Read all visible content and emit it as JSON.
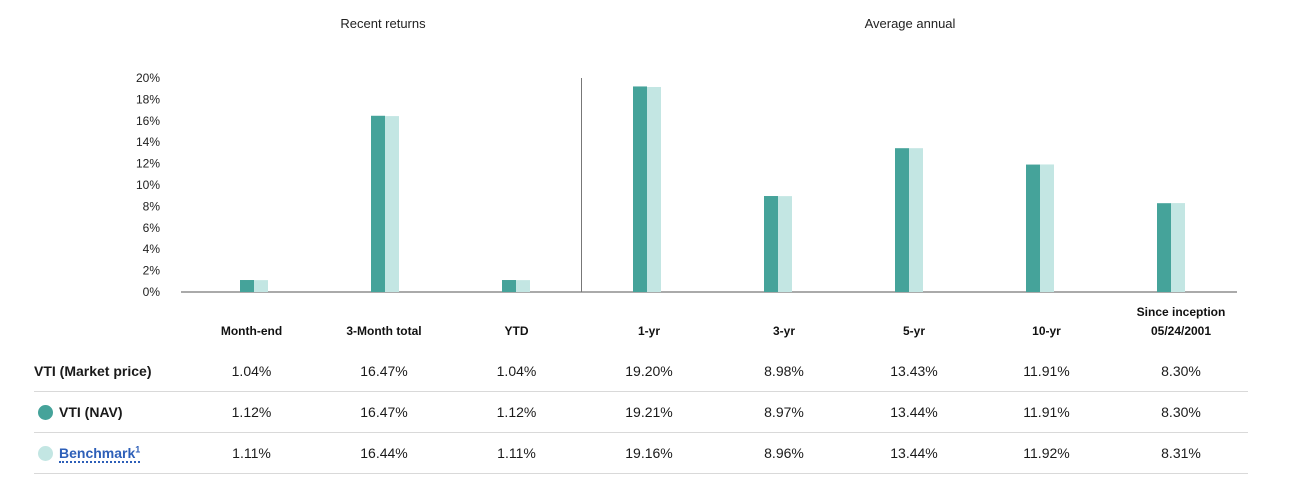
{
  "colors": {
    "nav": "#45a39a",
    "benchmark": "#c3e6e3",
    "axis": "#555555",
    "divider": "#777777"
  },
  "chart_data": {
    "type": "bar",
    "groups": [
      {
        "title": "Recent returns",
        "categories": [
          "Month-end",
          "3-Month total",
          "YTD"
        ]
      },
      {
        "title": "Average annual",
        "categories": [
          "1-yr",
          "3-yr",
          "5-yr",
          "10-yr",
          "Since inception 05/24/2001"
        ]
      }
    ],
    "categories": [
      "Month-end",
      "3-Month total",
      "YTD",
      "1-yr",
      "3-yr",
      "5-yr",
      "10-yr",
      "Since inception 05/24/2001"
    ],
    "series": [
      {
        "name": "VTI (NAV)",
        "values": [
          1.12,
          16.47,
          1.12,
          19.21,
          8.97,
          13.44,
          11.91,
          8.3
        ]
      },
      {
        "name": "Benchmark",
        "values": [
          1.11,
          16.44,
          1.11,
          19.16,
          8.96,
          13.44,
          11.92,
          8.31
        ]
      }
    ],
    "ylim": [
      0,
      20
    ],
    "yticks": [
      "0%",
      "2%",
      "4%",
      "6%",
      "8%",
      "10%",
      "12%",
      "14%",
      "16%",
      "18%",
      "20%"
    ],
    "grid": false,
    "legend": "row markers in table"
  },
  "table": {
    "headers": [
      "Month-end",
      "3-Month total",
      "YTD",
      "1-yr",
      "3-yr",
      "5-yr",
      "10-yr"
    ],
    "header_since_line1": "Since inception",
    "header_since_line2": "05/24/2001",
    "rows": [
      {
        "label": "VTI (Market price)",
        "values": [
          "1.04%",
          "16.47%",
          "1.04%",
          "19.20%",
          "8.98%",
          "13.43%",
          "11.91%",
          "8.30%"
        ]
      },
      {
        "label": "VTI (NAV)",
        "values": [
          "1.12%",
          "16.47%",
          "1.12%",
          "19.21%",
          "8.97%",
          "13.44%",
          "11.91%",
          "8.30%"
        ]
      },
      {
        "label": "Benchmark",
        "footnote": "1",
        "values": [
          "1.11%",
          "16.44%",
          "1.11%",
          "19.16%",
          "8.96%",
          "13.44%",
          "11.92%",
          "8.31%"
        ]
      }
    ]
  }
}
